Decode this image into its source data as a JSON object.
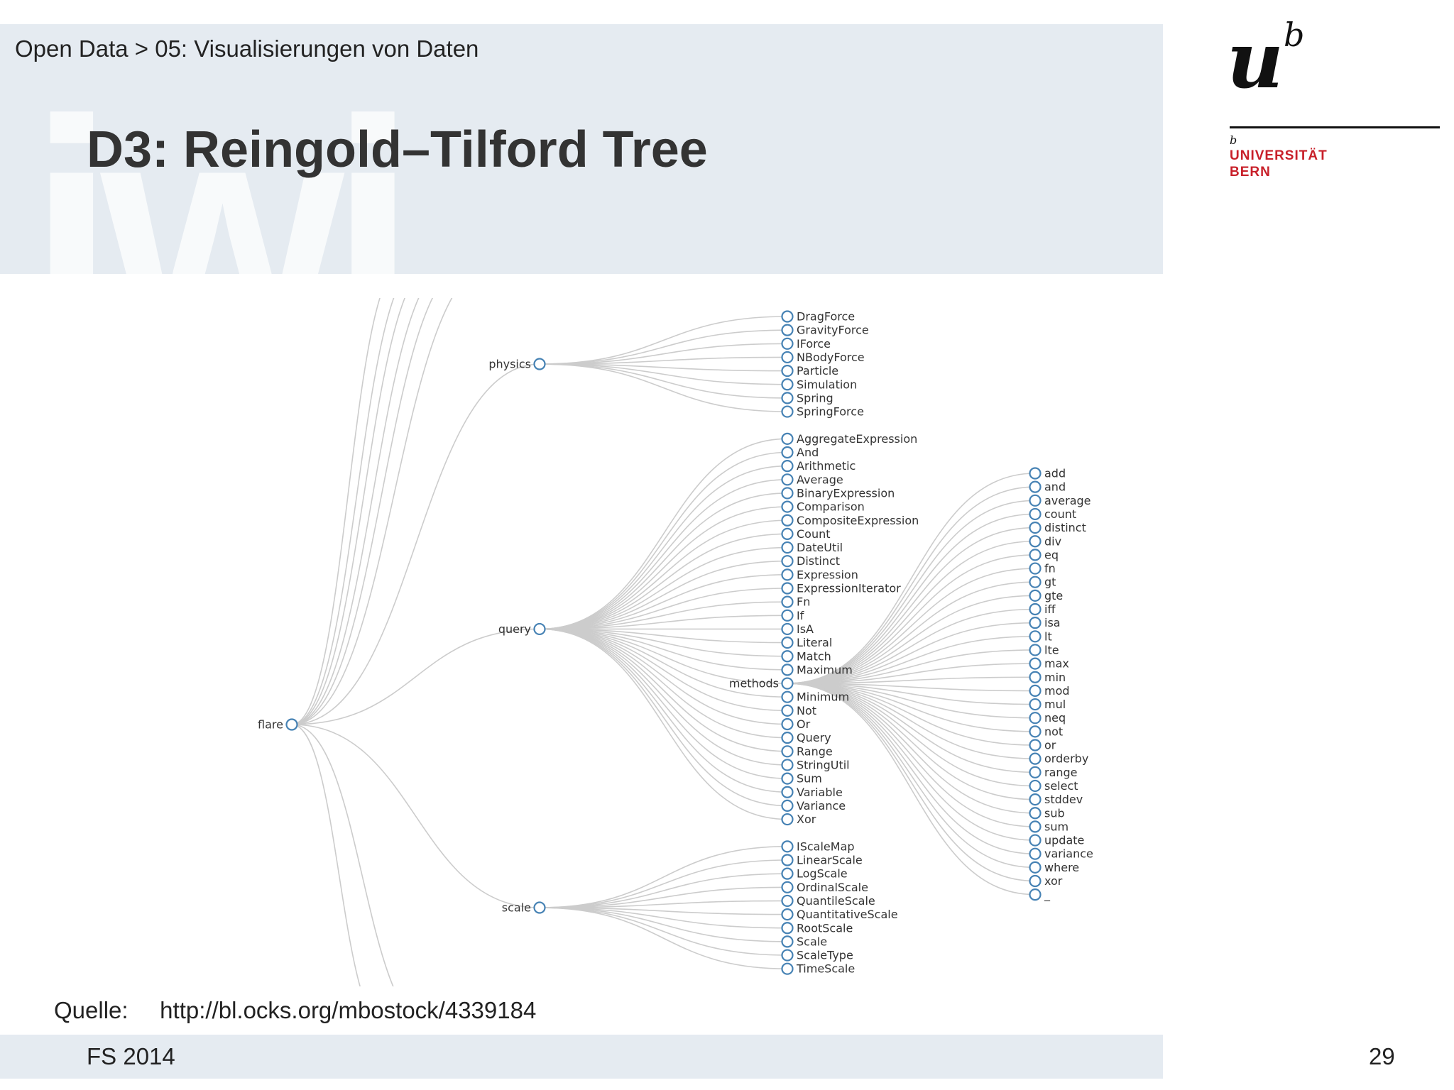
{
  "header": {
    "breadcrumb": "Open Data > 05: Visualisierungen von Daten",
    "title": "D3: Reingold–Tilford Tree",
    "watermark": "iwi"
  },
  "logo": {
    "mark_u": "u",
    "mark_b": "b",
    "small_b": "b",
    "line1": "UNIVERSITÄT",
    "line2": "BERN"
  },
  "colors": {
    "band": "#e5ebf1",
    "node_stroke": "#4682b4",
    "link": "#cccccc",
    "brand_red": "#c8202a"
  },
  "tree": {
    "root": "flare",
    "children": [
      {
        "name": "physics",
        "children": [
          "DragForce",
          "GravityForce",
          "IForce",
          "NBodyForce",
          "Particle",
          "Simulation",
          "Spring",
          "SpringForce"
        ]
      },
      {
        "name": "query",
        "children": [
          "AggregateExpression",
          "And",
          "Arithmetic",
          "Average",
          "BinaryExpression",
          "Comparison",
          "CompositeExpression",
          "Count",
          "DateUtil",
          "Distinct",
          "Expression",
          "ExpressionIterator",
          "Fn",
          "If",
          "IsA",
          "Literal",
          "Match",
          "Maximum",
          "methods",
          "Minimum",
          "Not",
          "Or",
          "Query",
          "Range",
          "StringUtil",
          "Sum",
          "Variable",
          "Variance",
          "Xor"
        ]
      },
      {
        "name": "scale",
        "children": [
          "IScaleMap",
          "LinearScale",
          "LogScale",
          "OrdinalScale",
          "QuantileScale",
          "QuantitativeScale",
          "RootScale",
          "Scale",
          "ScaleType",
          "TimeScale"
        ]
      }
    ],
    "methods": [
      "add",
      "and",
      "average",
      "count",
      "distinct",
      "div",
      "eq",
      "fn",
      "gt",
      "gte",
      "iff",
      "isa",
      "lt",
      "lte",
      "max",
      "min",
      "mod",
      "mul",
      "neq",
      "not",
      "or",
      "orderby",
      "range",
      "select",
      "stddev",
      "sub",
      "sum",
      "update",
      "variance",
      "where",
      "xor",
      "_"
    ]
  },
  "source": {
    "label": "Quelle:",
    "url": "http://bl.ocks.org/mbostock/4339184"
  },
  "footer": {
    "semester": "FS 2014",
    "page": "29"
  }
}
